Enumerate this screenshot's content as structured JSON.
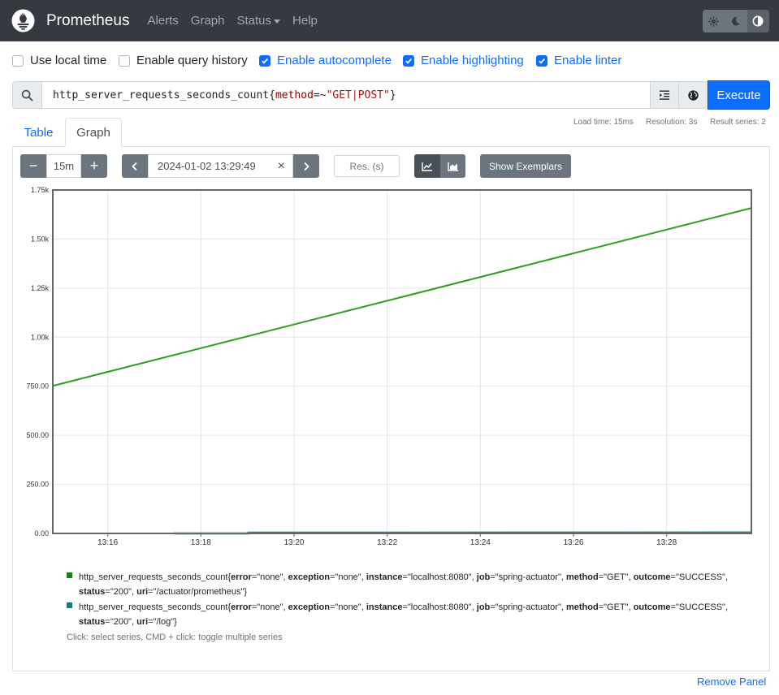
{
  "navbar": {
    "brand": "Prometheus",
    "links": [
      "Alerts",
      "Graph",
      "Status",
      "Help"
    ],
    "theme_buttons": [
      "sun-icon",
      "moon-icon",
      "contrast-icon"
    ]
  },
  "options": [
    {
      "label": "Use local time",
      "checked": false
    },
    {
      "label": "Enable query history",
      "checked": false
    },
    {
      "label": "Enable autocomplete",
      "checked": true
    },
    {
      "label": "Enable highlighting",
      "checked": true
    },
    {
      "label": "Enable linter",
      "checked": true
    }
  ],
  "query": {
    "metric": "http_server_requests_seconds_count",
    "open": "{",
    "label": "method",
    "op": "=~",
    "value": "\"GET|POST\"",
    "close": "}",
    "execute_label": "Execute"
  },
  "stats": {
    "load_time": "Load time: 15ms",
    "resolution": "Resolution: 3s",
    "result_series": "Result series: 2"
  },
  "tabs": [
    "Table",
    "Graph"
  ],
  "controls": {
    "range": "15m",
    "minus": "−",
    "plus": "+",
    "end_time": "2024-01-02 13:29:49",
    "clear": "×",
    "res_placeholder": "Res. (s)",
    "exemplars": "Show Exemplars"
  },
  "chart_data": {
    "type": "line",
    "ylim": [
      0,
      1750
    ],
    "xlim": [
      "13:14:49",
      "13:29:49"
    ],
    "yticks": [
      "1.75k",
      "1.50k",
      "1.25k",
      "1.00k",
      "750.00",
      "500.00",
      "250.00",
      "0.00"
    ],
    "ytick_values": [
      1750,
      1500,
      1250,
      1000,
      750,
      500,
      250,
      0
    ],
    "xticks": [
      "13:16",
      "13:18",
      "13:20",
      "13:22",
      "13:24",
      "13:26",
      "13:28"
    ],
    "xtick_minutes": [
      1.18,
      3.18,
      5.18,
      7.18,
      9.18,
      11.18,
      13.18
    ],
    "series": [
      {
        "color": "#2e9e1e",
        "x_min": [
          0,
          15
        ],
        "y": [
          752,
          1658
        ]
      },
      {
        "color": "#2a8a8a",
        "x_min": [
          2.6,
          4.2,
          4.2,
          15
        ],
        "y": [
          0,
          0,
          4,
          5
        ]
      }
    ],
    "grid": true
  },
  "legend": [
    {
      "color": "#0b8a0b",
      "metric": "http_server_requests_seconds_count",
      "labels": [
        [
          "error",
          "none"
        ],
        [
          "exception",
          "none"
        ],
        [
          "instance",
          "localhost:8080"
        ],
        [
          "job",
          "spring-actuator"
        ],
        [
          "method",
          "GET"
        ],
        [
          "outcome",
          "SUCCESS"
        ],
        [
          "status",
          "200"
        ],
        [
          "uri",
          "/actuator/prometheus"
        ]
      ]
    },
    {
      "color": "#1a7a7a",
      "metric": "http_server_requests_seconds_count",
      "labels": [
        [
          "error",
          "none"
        ],
        [
          "exception",
          "none"
        ],
        [
          "instance",
          "localhost:8080"
        ],
        [
          "job",
          "spring-actuator"
        ],
        [
          "method",
          "GET"
        ],
        [
          "outcome",
          "SUCCESS"
        ],
        [
          "status",
          "200"
        ],
        [
          "uri",
          "/log"
        ]
      ]
    }
  ],
  "hint": "Click: select series, CMD + click: toggle multiple series",
  "remove_panel": "Remove Panel"
}
